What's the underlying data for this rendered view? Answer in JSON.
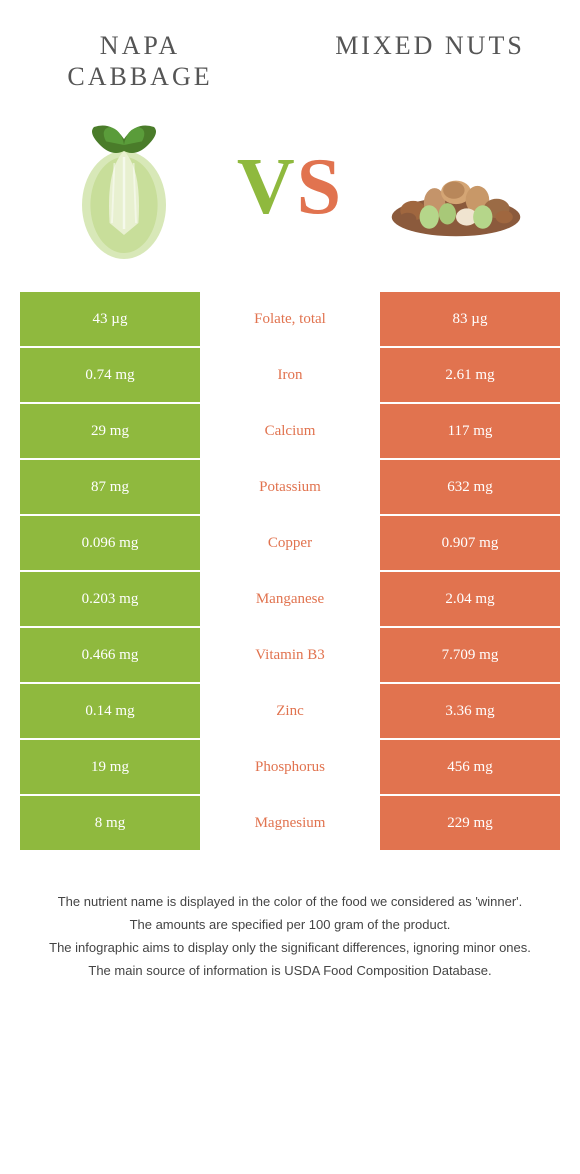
{
  "left_food": "Napa cabbage",
  "right_food": "Mixed nuts",
  "vs": {
    "v": "V",
    "s": "S"
  },
  "colors": {
    "left": "#8fb93e",
    "right": "#e1734f",
    "mid_text": "#e1734f",
    "v_color": "#8fb93e",
    "s_color": "#e1734f"
  },
  "rows": [
    {
      "left": "43 µg",
      "label": "Folate, total",
      "right": "83 µg"
    },
    {
      "left": "0.74 mg",
      "label": "Iron",
      "right": "2.61 mg"
    },
    {
      "left": "29 mg",
      "label": "Calcium",
      "right": "117 mg"
    },
    {
      "left": "87 mg",
      "label": "Potassium",
      "right": "632 mg"
    },
    {
      "left": "0.096 mg",
      "label": "Copper",
      "right": "0.907 mg"
    },
    {
      "left": "0.203 mg",
      "label": "Manganese",
      "right": "2.04 mg"
    },
    {
      "left": "0.466 mg",
      "label": "Vitamin B3",
      "right": "7.709 mg"
    },
    {
      "left": "0.14 mg",
      "label": "Zinc",
      "right": "3.36 mg"
    },
    {
      "left": "19 mg",
      "label": "Phosphorus",
      "right": "456 mg"
    },
    {
      "left": "8 mg",
      "label": "Magnesium",
      "right": "229 mg"
    }
  ],
  "footer": [
    "The nutrient name is displayed in the color of the food we considered as 'winner'.",
    "The amounts are specified per 100 gram of the product.",
    "The infographic aims to display only the significant differences, ignoring minor ones.",
    "The main source of information is USDA Food Composition Database."
  ]
}
